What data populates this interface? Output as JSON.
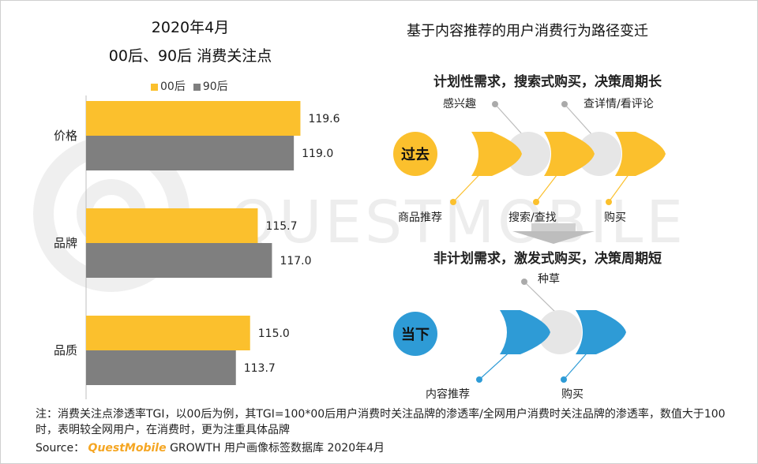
{
  "left_chart": {
    "title_line1": "2020年4月",
    "title_line2": "00后、90后 消费关注点"
  },
  "chart_data": {
    "type": "bar",
    "orientation": "horizontal",
    "title": "2020年4月 00后、90后 消费关注点",
    "categories": [
      "价格",
      "品牌",
      "品质"
    ],
    "series": [
      {
        "name": "00后",
        "values": [
          119.6,
          115.7,
          115.0
        ],
        "color": "#FBC02D"
      },
      {
        "name": "90后",
        "values": [
          119.0,
          117.0,
          113.7
        ],
        "color": "#7F7F7F"
      }
    ],
    "value_labels": [
      [
        "119.6",
        "115.7",
        "115.0"
      ],
      [
        "119.0",
        "117.0",
        "113.7"
      ]
    ],
    "xlabel": "",
    "ylabel": "",
    "legend": "top"
  },
  "right_panel": {
    "title": "基于内容推荐的用户消费行为路径变迁",
    "past": {
      "badge": "过去",
      "heading": "计划性需求，搜索式购买，决策周期长",
      "top_labels": [
        "感兴趣",
        "查详情/看评论"
      ],
      "bottom_labels": [
        "商品推荐",
        "搜索/查找",
        "购买"
      ]
    },
    "present": {
      "badge": "当下",
      "heading": "非计划需求，激发式购买，决策周期短",
      "top_labels": [
        "种草"
      ],
      "bottom_labels": [
        "内容推荐",
        "购买"
      ]
    }
  },
  "watermark": "QUESTMOBILE",
  "footer": {
    "note": "注：消费关注点渗透率TGI，以00后为例，其TGI=100*00后用户消费时关注品牌的渗透率/全网用户消费时关注品牌的渗透率，数值大于100时，表明较全网用户，在消费时，更为注重具体品牌",
    "source_prefix": "Source：",
    "source_brand": "QuestMobile",
    "source_text": "GROWTH 用户画像标签数据库 2020年4月"
  },
  "colors": {
    "yellow": "#FBC02D",
    "gray": "#7F7F7F",
    "blue": "#2E9BD6",
    "light_gray": "#E6E6E6",
    "brand_orange": "#F5A623"
  }
}
